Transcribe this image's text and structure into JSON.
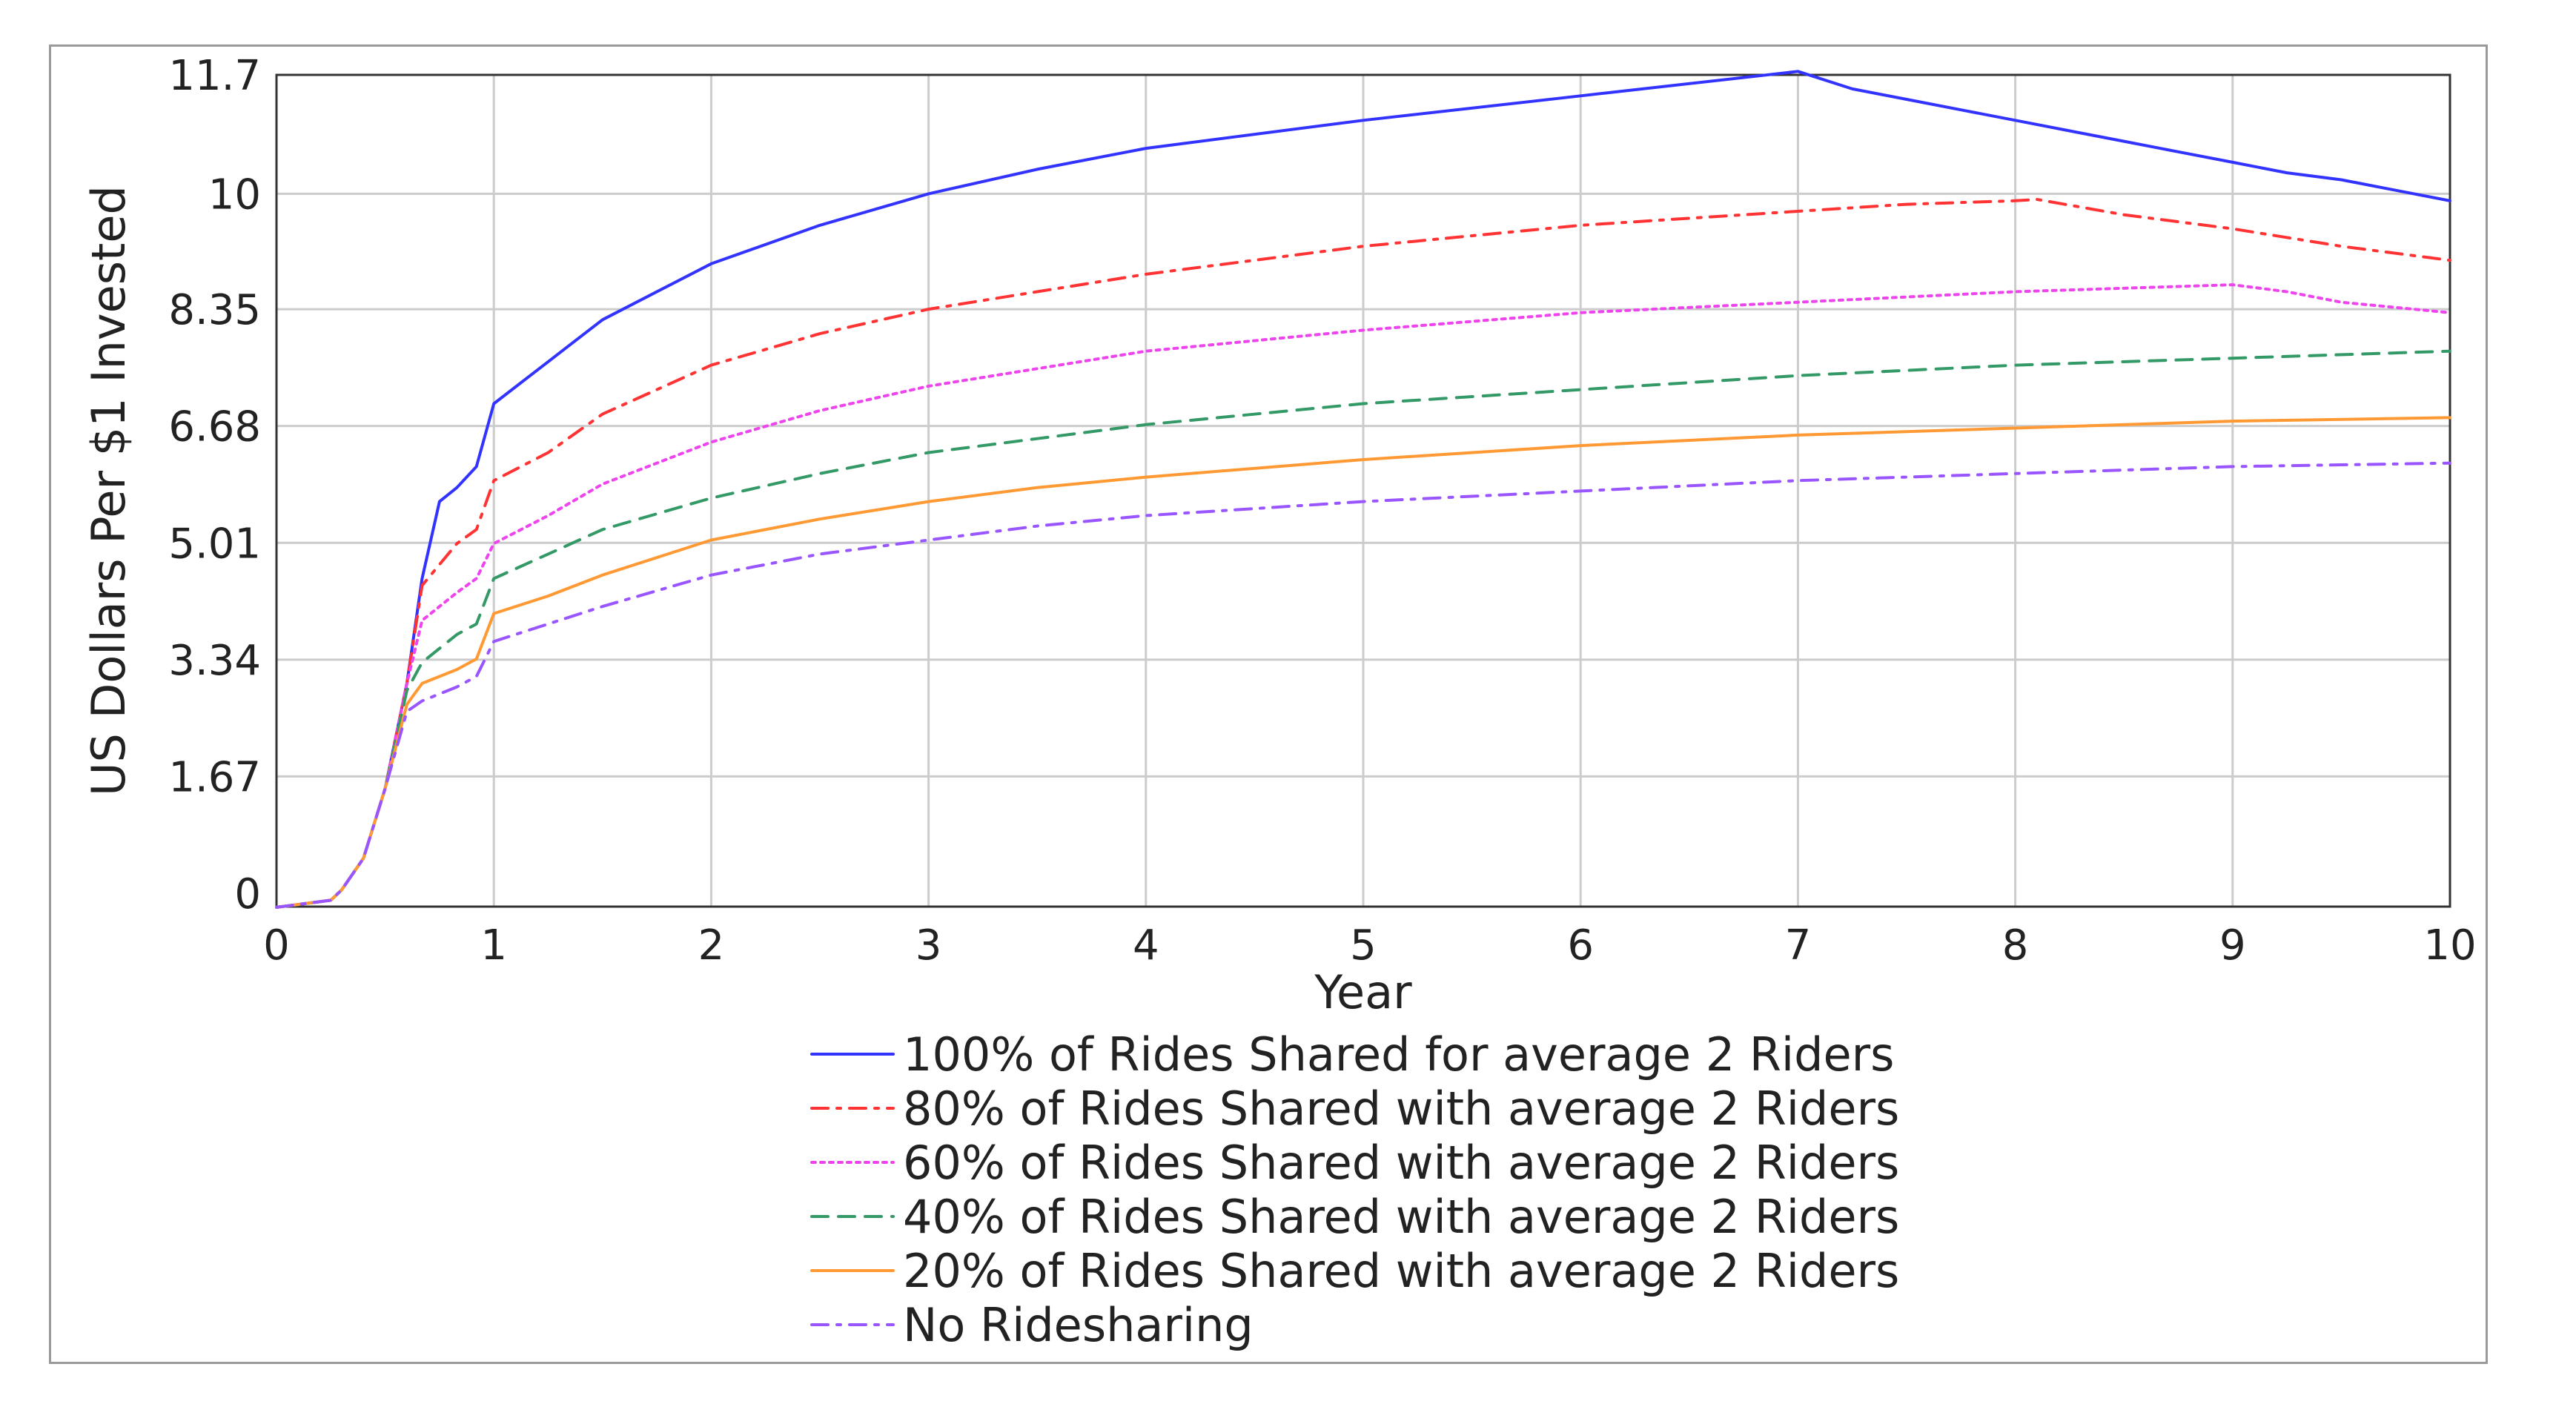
{
  "chart_data": {
    "type": "line",
    "title": "",
    "xlabel": "Year",
    "ylabel": "US Dollars Per $1 Invested",
    "xlim": [
      0,
      10
    ],
    "ylim": [
      0,
      11.7
    ],
    "x_ticks": [
      0,
      1,
      2,
      3,
      4,
      5,
      6,
      7,
      8,
      9,
      10
    ],
    "x_tick_labels": [
      "0",
      "1",
      "2",
      "3",
      "4",
      "5",
      "6",
      "7",
      "8",
      "9",
      "10"
    ],
    "y_ticks": [
      0,
      1.67,
      3.34,
      5.01,
      6.68,
      8.35,
      10,
      11.7
    ],
    "y_tick_labels": [
      "0",
      "1.67",
      "3.34",
      "5.01",
      "6.68",
      "8.35",
      "10",
      "11.7"
    ],
    "grid": true,
    "legend_position": "bottom",
    "series": [
      {
        "name": "100% of Rides Shared for average 2 Riders",
        "color": "#3333ff",
        "dash": "solid",
        "x": [
          0,
          0.25,
          0.3,
          0.4,
          0.5,
          0.6,
          0.67,
          0.75,
          0.83,
          0.92,
          1.0,
          1.25,
          1.5,
          2,
          2.5,
          3,
          3.5,
          4,
          5,
          6,
          7,
          7.25,
          7.5,
          7.75,
          8,
          8.25,
          8.5,
          8.75,
          9,
          9.25,
          9.5,
          9.75,
          10
        ],
        "y": [
          -0.2,
          -0.1,
          0.05,
          0.5,
          1.5,
          3.0,
          4.5,
          5.6,
          5.8,
          6.1,
          7.0,
          7.6,
          8.2,
          9.0,
          9.55,
          10.0,
          10.35,
          10.65,
          11.05,
          11.4,
          11.75,
          11.5,
          11.35,
          11.2,
          11.05,
          10.9,
          10.75,
          10.6,
          10.45,
          10.3,
          10.2,
          10.05,
          9.9
        ]
      },
      {
        "name": "80% of Rides Shared with average 2 Riders",
        "color": "#ff3333",
        "dash": "dashdot",
        "x": [
          0,
          0.25,
          0.3,
          0.4,
          0.5,
          0.6,
          0.67,
          0.75,
          0.83,
          0.92,
          1.0,
          1.25,
          1.5,
          2,
          2.5,
          3,
          3.5,
          4,
          5,
          6,
          7,
          7.5,
          8,
          8.1,
          8.5,
          9,
          9.5,
          10
        ],
        "y": [
          -0.2,
          -0.1,
          0.05,
          0.5,
          1.5,
          3.0,
          4.4,
          4.7,
          5.0,
          5.2,
          5.9,
          6.3,
          6.85,
          7.55,
          8.0,
          8.35,
          8.6,
          8.85,
          9.25,
          9.55,
          9.75,
          9.85,
          9.9,
          9.92,
          9.7,
          9.5,
          9.25,
          9.05
        ]
      },
      {
        "name": "60% of Rides Shared with average 2 Riders",
        "color": "#ee44ee",
        "dash": "dotted",
        "x": [
          0,
          0.25,
          0.3,
          0.4,
          0.5,
          0.6,
          0.67,
          0.75,
          0.83,
          0.92,
          1.0,
          1.25,
          1.5,
          2,
          2.5,
          3,
          3.5,
          4,
          5,
          6,
          7,
          8,
          9,
          9.25,
          9.5,
          10
        ],
        "y": [
          -0.2,
          -0.1,
          0.05,
          0.5,
          1.5,
          3.0,
          3.9,
          4.1,
          4.3,
          4.5,
          5.0,
          5.4,
          5.85,
          6.45,
          6.9,
          7.25,
          7.5,
          7.75,
          8.05,
          8.3,
          8.45,
          8.6,
          8.7,
          8.6,
          8.45,
          8.3
        ]
      },
      {
        "name": "40% of Rides Shared with average 2 Riders",
        "color": "#339966",
        "dash": "dashed",
        "x": [
          0,
          0.25,
          0.3,
          0.4,
          0.5,
          0.6,
          0.67,
          0.75,
          0.83,
          0.92,
          1.0,
          1.25,
          1.5,
          2,
          2.5,
          3,
          3.5,
          4,
          5,
          6,
          7,
          8,
          9,
          10
        ],
        "y": [
          -0.2,
          -0.1,
          0.05,
          0.5,
          1.5,
          2.9,
          3.3,
          3.5,
          3.7,
          3.85,
          4.5,
          4.85,
          5.2,
          5.65,
          6.0,
          6.3,
          6.5,
          6.7,
          7.0,
          7.2,
          7.4,
          7.55,
          7.65,
          7.75
        ]
      },
      {
        "name": "20% of Rides Shared with average 2 Riders",
        "color": "#ff9933",
        "dash": "solid",
        "x": [
          0,
          0.25,
          0.3,
          0.4,
          0.5,
          0.6,
          0.67,
          0.75,
          0.83,
          0.92,
          1.0,
          1.25,
          1.5,
          2,
          2.5,
          3,
          3.5,
          4,
          5,
          6,
          7,
          8,
          9,
          10
        ],
        "y": [
          -0.2,
          -0.1,
          0.05,
          0.5,
          1.5,
          2.7,
          3.0,
          3.1,
          3.2,
          3.35,
          4.0,
          4.25,
          4.55,
          5.05,
          5.35,
          5.6,
          5.8,
          5.95,
          6.2,
          6.4,
          6.55,
          6.65,
          6.75,
          6.8
        ]
      },
      {
        "name": "No Ridesharing",
        "color": "#9955ff",
        "dash": "dashdot",
        "x": [
          0,
          0.25,
          0.3,
          0.4,
          0.5,
          0.6,
          0.67,
          0.75,
          0.83,
          0.92,
          1.0,
          1.25,
          1.5,
          2,
          2.5,
          3,
          3.5,
          4,
          5,
          6,
          7,
          8,
          9,
          10
        ],
        "y": [
          -0.2,
          -0.1,
          0.05,
          0.5,
          1.5,
          2.6,
          2.75,
          2.85,
          2.95,
          3.1,
          3.6,
          3.85,
          4.1,
          4.55,
          4.85,
          5.05,
          5.25,
          5.4,
          5.6,
          5.75,
          5.9,
          6.0,
          6.1,
          6.15
        ]
      }
    ]
  }
}
